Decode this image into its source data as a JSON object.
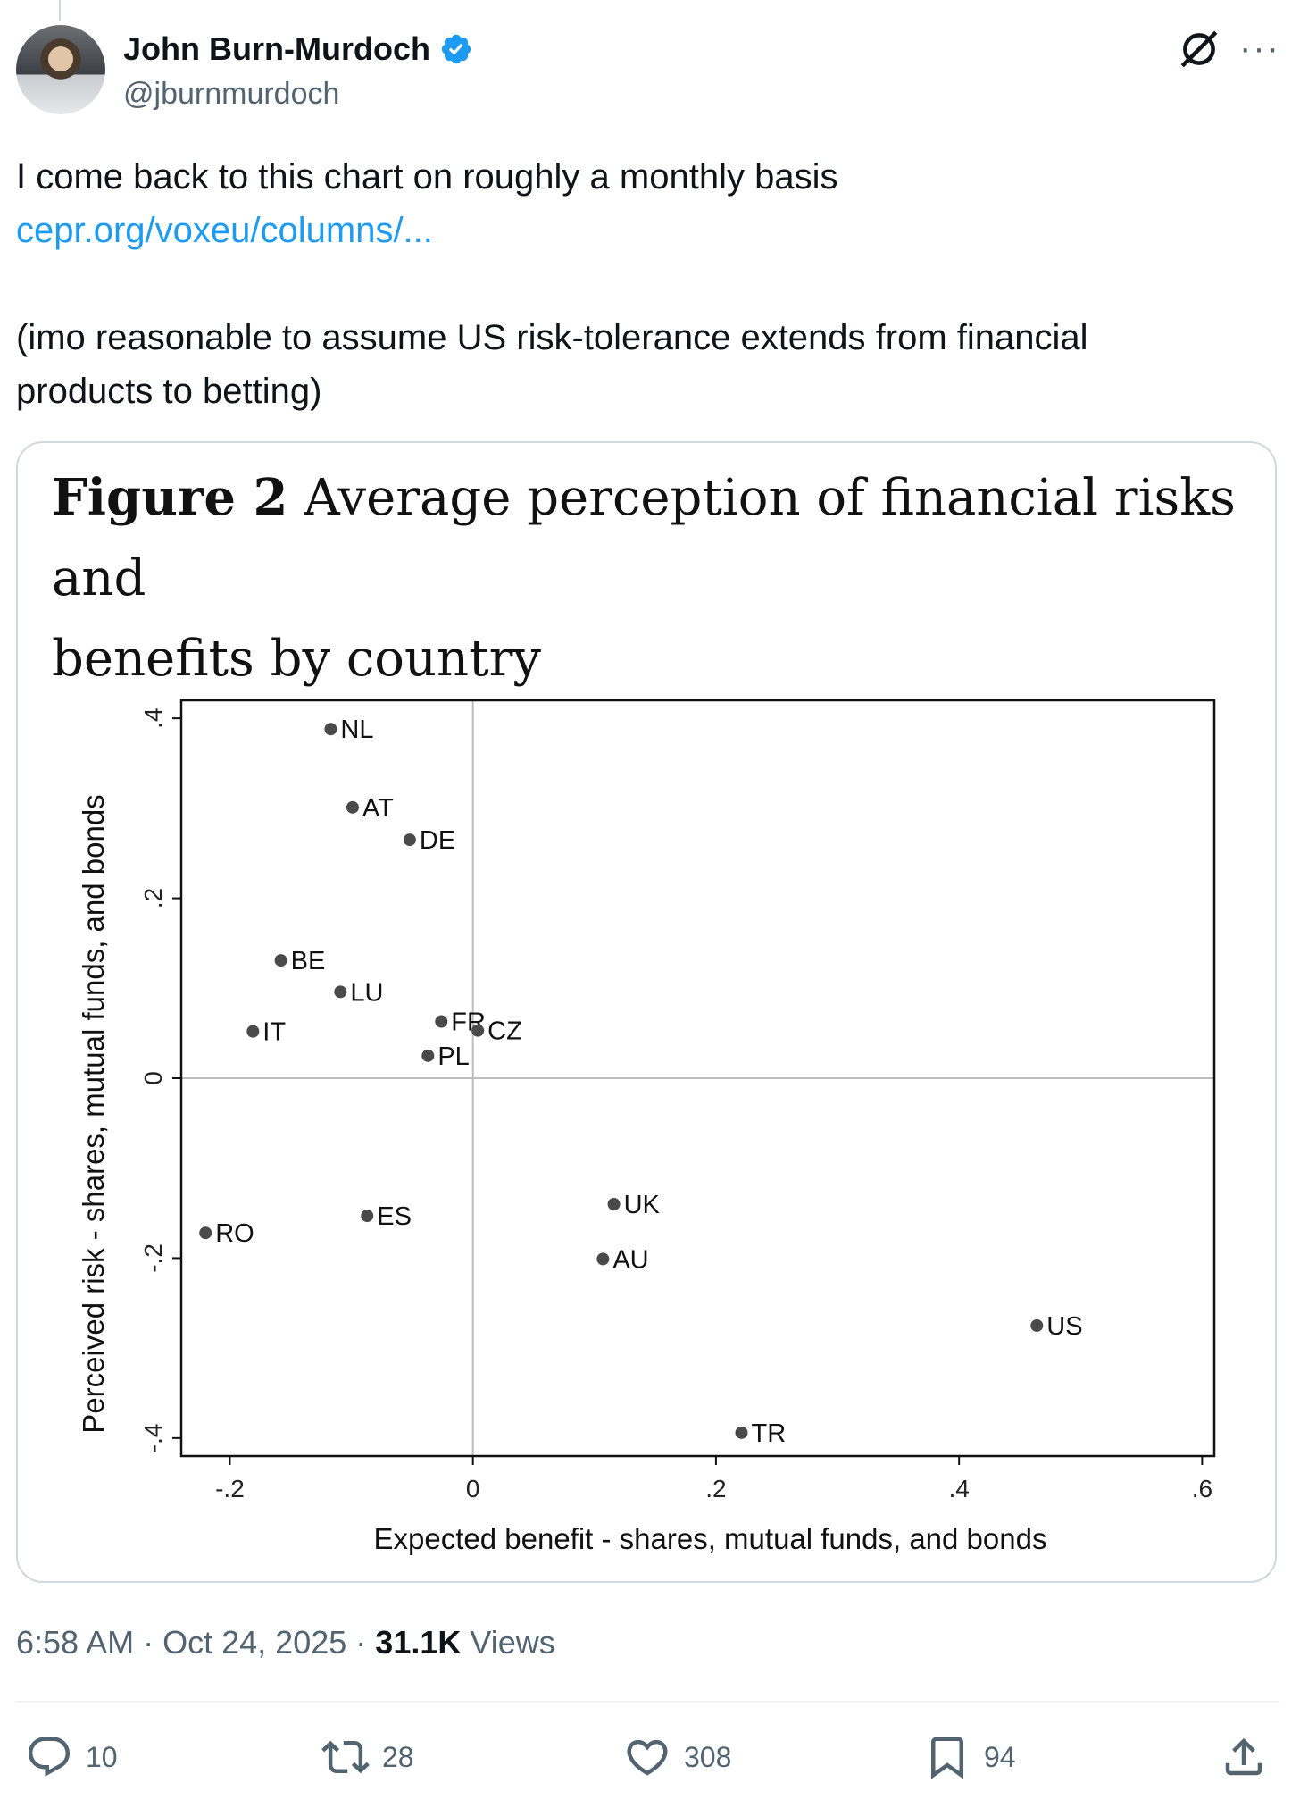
{
  "author": {
    "display_name": "John Burn-Murdoch",
    "handle": "@jburnmurdoch",
    "verified": true,
    "verified_color": "#1d9bf0"
  },
  "tweet": {
    "line1": "I come back to this chart on roughly a monthly basis",
    "link": "cepr.org/voxeu/columns/...",
    "line2": "(imo reasonable to assume US risk-tolerance extends from financial",
    "line3": "products to betting)"
  },
  "figure": {
    "label": "Figure 2",
    "title_part1": "Average perception of financial risks and",
    "title_part2": "benefits by country"
  },
  "chart_data": {
    "type": "scatter",
    "title": "Average perception of financial risks and benefits by country",
    "xlabel": "Expected benefit - shares, mutual funds, and bonds",
    "ylabel": "Perceived risk - shares, mutual funds, and bonds",
    "xlim": [
      -0.24,
      0.61
    ],
    "ylim": [
      -0.42,
      0.42
    ],
    "x_ticks": [
      {
        "value": -0.2,
        "label": "-.2"
      },
      {
        "value": 0,
        "label": "0"
      },
      {
        "value": 0.2,
        "label": ".2"
      },
      {
        "value": 0.4,
        "label": ".4"
      },
      {
        "value": 0.6,
        "label": ".6"
      }
    ],
    "y_ticks": [
      {
        "value": 0.4,
        "label": ".4"
      },
      {
        "value": 0.2,
        "label": ".2"
      },
      {
        "value": 0,
        "label": "0"
      },
      {
        "value": -0.2,
        "label": "-.2"
      },
      {
        "value": -0.4,
        "label": "-.4"
      }
    ],
    "reference_lines": {
      "x": 0,
      "y": 0
    },
    "points": [
      {
        "label": "NL",
        "x": -0.117,
        "y": 0.388
      },
      {
        "label": "AT",
        "x": -0.099,
        "y": 0.301
      },
      {
        "label": "DE",
        "x": -0.052,
        "y": 0.265
      },
      {
        "label": "BE",
        "x": -0.158,
        "y": 0.131
      },
      {
        "label": "LU",
        "x": -0.109,
        "y": 0.096
      },
      {
        "label": "IT",
        "x": -0.181,
        "y": 0.052
      },
      {
        "label": "FR",
        "x": -0.026,
        "y": 0.063
      },
      {
        "label": "CZ",
        "x": 0.004,
        "y": 0.053
      },
      {
        "label": "PL",
        "x": -0.037,
        "y": 0.025
      },
      {
        "label": "RO",
        "x": -0.22,
        "y": -0.172
      },
      {
        "label": "ES",
        "x": -0.087,
        "y": -0.153
      },
      {
        "label": "UK",
        "x": 0.116,
        "y": -0.14
      },
      {
        "label": "AU",
        "x": 0.107,
        "y": -0.201
      },
      {
        "label": "US",
        "x": 0.464,
        "y": -0.275
      },
      {
        "label": "TR",
        "x": 0.221,
        "y": -0.394
      }
    ],
    "point_color": "#4a4a4a",
    "grid": false,
    "legend": "none"
  },
  "meta": {
    "time": "6:58 AM",
    "separator": "·",
    "date": "Oct 24, 2025",
    "views_count": "31.1K",
    "views_label": "Views"
  },
  "actions": {
    "replies": "10",
    "reposts": "28",
    "likes": "308",
    "bookmarks": "94"
  },
  "icons": [
    "verified-badge-icon",
    "grok-icon",
    "more-icon",
    "reply-icon",
    "repost-icon",
    "like-icon",
    "bookmark-icon",
    "share-icon"
  ]
}
